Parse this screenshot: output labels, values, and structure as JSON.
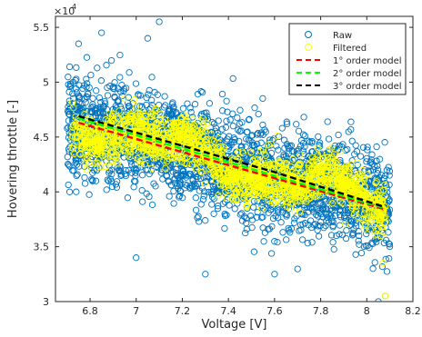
{
  "chart_data": {
    "type": "scatter",
    "xlabel": "Voltage [V]",
    "ylabel": "Hovering throttle [-]",
    "y_exponent_label": "×10",
    "y_exponent": "4",
    "xlim": [
      6.65,
      8.2
    ],
    "ylim": [
      3.0,
      5.6
    ],
    "x_ticks": [
      6.8,
      7.0,
      7.2,
      7.4,
      7.6,
      7.8,
      8.0,
      8.2
    ],
    "x_tick_labels": [
      "6.8",
      "7",
      "7.2",
      "7.4",
      "7.6",
      "7.8",
      "8",
      "8.2"
    ],
    "y_ticks": [
      3.0,
      3.5,
      4.0,
      4.5,
      5.0,
      5.5
    ],
    "y_tick_labels": [
      "3",
      "3.5",
      "4",
      "4.5",
      "5",
      "5.5"
    ],
    "grid": false,
    "legend_position": "top-right",
    "legend": [
      {
        "label": "Raw",
        "marker": "circle",
        "color": "#0072bd"
      },
      {
        "label": "Filtered",
        "marker": "circle",
        "color": "#ffff00"
      },
      {
        "label": "1° order model",
        "marker": "dashed-line",
        "color": "#ff0000"
      },
      {
        "label": "2° order model",
        "marker": "dashed-line",
        "color": "#00ff00"
      },
      {
        "label": "3° order model",
        "marker": "dashed-line",
        "color": "#000000"
      }
    ],
    "series": [
      {
        "name": "Raw",
        "kind": "scatter",
        "color": "#0072bd",
        "x_range": [
          6.7,
          8.1
        ],
        "trend_start": 4.65,
        "trend_end": 3.85,
        "spread": 0.45,
        "outliers": [
          [
            7.1,
            5.55
          ],
          [
            6.75,
            5.35
          ],
          [
            6.85,
            5.45
          ],
          [
            7.05,
            5.4
          ],
          [
            8.05,
            3.0
          ],
          [
            8.08,
            3.05
          ],
          [
            7.3,
            3.25
          ],
          [
            7.6,
            3.25
          ],
          [
            7.0,
            3.4
          ],
          [
            8.1,
            3.5
          ]
        ]
      },
      {
        "name": "Filtered",
        "kind": "scatter",
        "color": "#ffff00",
        "x_range": [
          6.72,
          8.08
        ],
        "trend_start": 4.65,
        "trend_end": 3.88,
        "spread": 0.22,
        "outliers": [
          [
            8.08,
            3.05
          ],
          [
            8.07,
            3.35
          ],
          [
            8.06,
            3.6
          ]
        ]
      },
      {
        "name": "1° order model",
        "kind": "line",
        "color": "#ff0000",
        "x": [
          6.75,
          8.08
        ],
        "y": [
          4.63,
          3.84
        ]
      },
      {
        "name": "2° order model",
        "kind": "line",
        "color": "#00ff00",
        "x": [
          6.75,
          7.4,
          8.08
        ],
        "y": [
          4.67,
          4.27,
          3.85
        ]
      },
      {
        "name": "3° order model",
        "kind": "line",
        "color": "#000000",
        "x": [
          6.75,
          7.2,
          7.6,
          8.08
        ],
        "y": [
          4.69,
          4.42,
          4.18,
          3.86
        ]
      }
    ]
  }
}
